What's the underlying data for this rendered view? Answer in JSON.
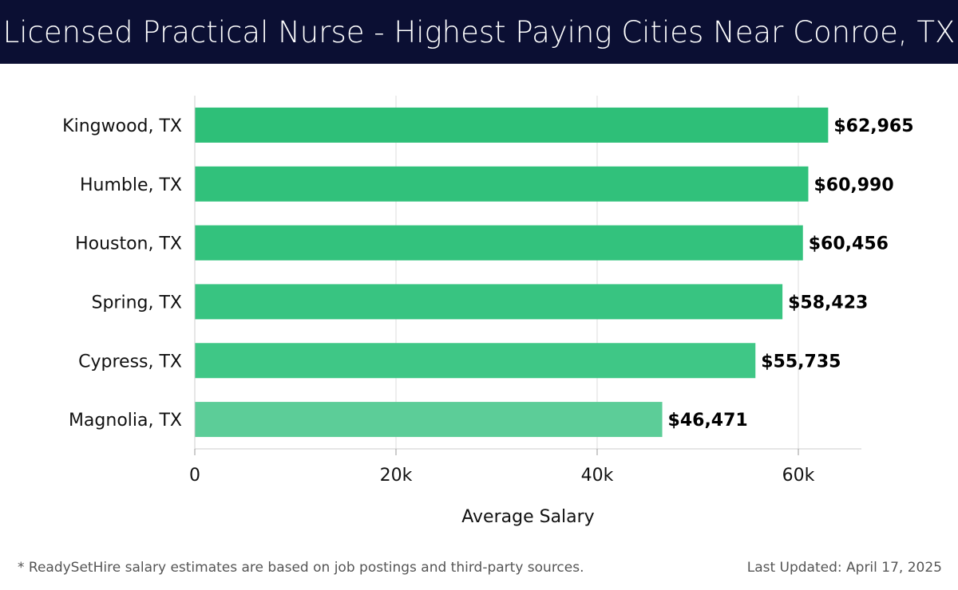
{
  "header": {
    "title": "Licensed Practical Nurse - Highest Paying Cities Near Conroe, TX",
    "background_color": "#0b0f33"
  },
  "chart_data": {
    "type": "bar",
    "orientation": "horizontal",
    "categories": [
      "Kingwood, TX",
      "Humble, TX",
      "Houston, TX",
      "Spring, TX",
      "Cypress, TX",
      "Magnolia, TX"
    ],
    "values": [
      62965,
      60990,
      60456,
      58423,
      55735,
      46471
    ],
    "value_labels": [
      "$62,965",
      "$60,990",
      "$60,456",
      "$58,423",
      "$55,735",
      "$46,471"
    ],
    "xlabel": "Average Salary",
    "ylabel": "",
    "xlim": [
      0,
      66000
    ],
    "x_ticks": [
      0,
      20000,
      40000,
      60000
    ],
    "x_tick_labels": [
      "0",
      "20k",
      "40k",
      "60k"
    ],
    "grid": "vertical",
    "bar_colors": [
      "#2ebf78",
      "#31c17b",
      "#33c27d",
      "#38c481",
      "#3fc786",
      "#5ccd98"
    ]
  },
  "footer": {
    "note": "* ReadySetHire salary estimates are based on job postings and third-party sources.",
    "updated": "Last Updated: April 17, 2025"
  }
}
